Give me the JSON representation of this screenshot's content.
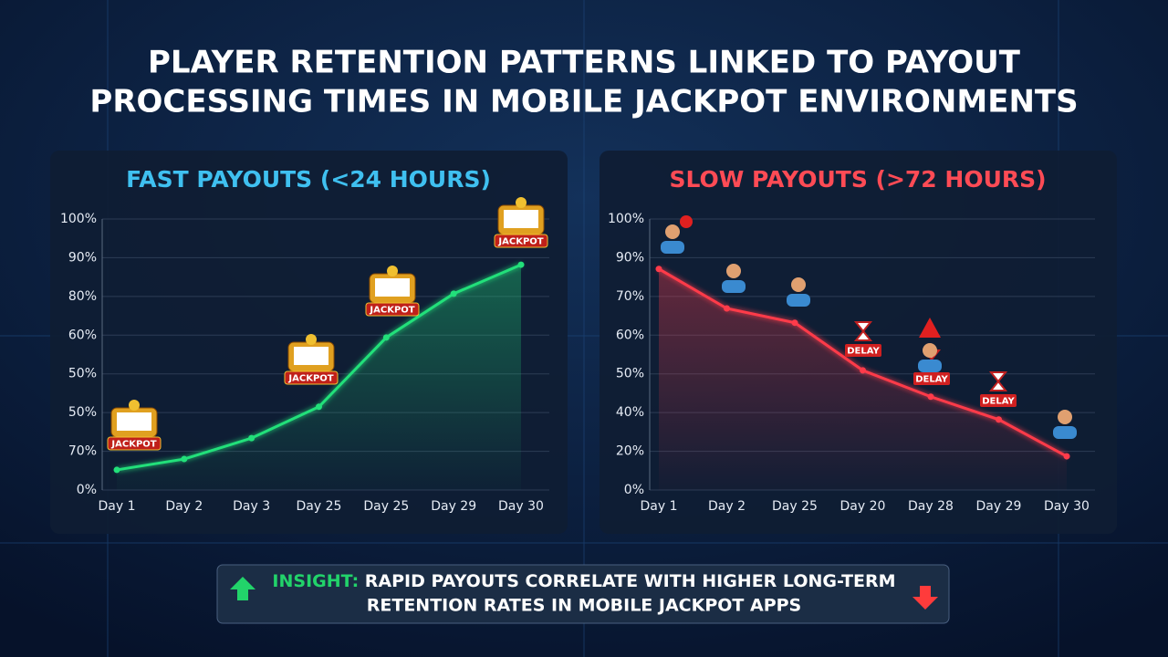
{
  "title": "PLAYER RETENTION PATTERNS LINKED TO PAYOUT PROCESSING TIMES IN MOBILE JACKPOT ENVIRONMENTS",
  "chart_data": [
    {
      "type": "line",
      "title": "FAST PAYOUTS (<24 HOURS)",
      "color": "#22e07a",
      "categories": [
        "Day 1",
        "Day 2",
        "Day 3",
        "Day 25",
        "Day 25",
        "Day 29",
        "Day 30"
      ],
      "values": [
        0.52,
        0.8,
        1.34,
        2.15,
        3.94,
        5.07,
        5.82
      ],
      "ylim": [
        0,
        7
      ],
      "yticks": [
        {
          "value": 0,
          "label": "0%"
        },
        {
          "value": 1,
          "label": "70%"
        },
        {
          "value": 2,
          "label": "50%"
        },
        {
          "value": 3,
          "label": "50%"
        },
        {
          "value": 4,
          "label": "60%"
        },
        {
          "value": 5,
          "label": "80%"
        },
        {
          "value": 6,
          "label": "90%"
        },
        {
          "value": 7,
          "label": "100%"
        }
      ],
      "grid": true,
      "annotations": [
        "JACKPOT",
        "JACKPOT",
        "JACKPOT",
        "JACKPOT"
      ]
    },
    {
      "type": "line",
      "title": "SLOW PAYOUTS (>72 HOURS)",
      "color": "#ff3b4a",
      "categories": [
        "Day 1",
        "Day 2",
        "Day 25",
        "Day 20",
        "Day 28",
        "Day 29",
        "Day 30"
      ],
      "values": [
        5.71,
        4.69,
        4.32,
        3.09,
        2.41,
        1.82,
        0.87
      ],
      "ylim": [
        0,
        7
      ],
      "yticks": [
        {
          "value": 0,
          "label": "0%"
        },
        {
          "value": 1,
          "label": "20%"
        },
        {
          "value": 2,
          "label": "40%"
        },
        {
          "value": 3,
          "label": "50%"
        },
        {
          "value": 4,
          "label": "60%"
        },
        {
          "value": 5,
          "label": "70%"
        },
        {
          "value": 6,
          "label": "90%"
        },
        {
          "value": 7,
          "label": "100%"
        }
      ],
      "grid": true,
      "annotations": [
        "DELAY",
        "DELAY",
        "DELAY"
      ]
    }
  ],
  "insight": {
    "label": "INSIGHT:",
    "text": "RAPID PAYOUTS CORRELATE WITH HIGHER LONG-TERM RETENTION RATES IN MOBILE JACKPOT APPS"
  }
}
